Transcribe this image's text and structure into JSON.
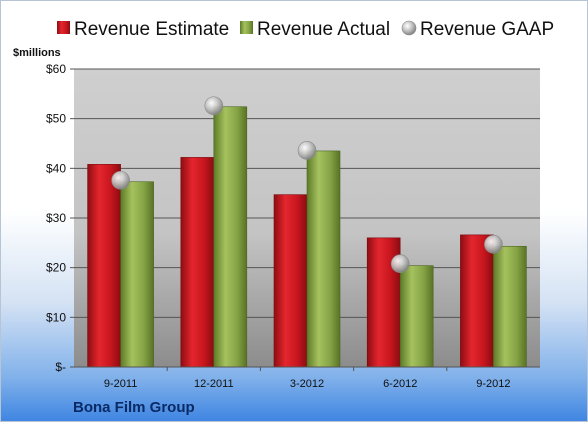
{
  "chart_data": {
    "type": "bar",
    "unit_label": "$millions",
    "company": "Bona Film Group",
    "categories": [
      "9-2011",
      "12-2011",
      "3-2012",
      "6-2012",
      "9-2012"
    ],
    "series": [
      {
        "name": "Revenue Estimate",
        "kind": "bar",
        "color": "#c0141c",
        "values": [
          40.8,
          42.2,
          34.7,
          26.0,
          26.6
        ]
      },
      {
        "name": "Revenue Actual",
        "kind": "bar",
        "color": "#7f9e3c",
        "values": [
          37.3,
          52.4,
          43.5,
          20.4,
          24.3
        ]
      },
      {
        "name": "Revenue GAAP",
        "kind": "marker",
        "color": "#a9a9a9",
        "values": [
          37.6,
          52.6,
          43.6,
          20.8,
          24.7
        ]
      }
    ],
    "ylim": [
      0,
      60
    ],
    "yticks": [
      0,
      10,
      20,
      30,
      40,
      50,
      60
    ],
    "ytick_labels": [
      "$-",
      "$10",
      "$20",
      "$30",
      "$40",
      "$50",
      "$60"
    ],
    "grid": true,
    "legend_position": "top"
  }
}
